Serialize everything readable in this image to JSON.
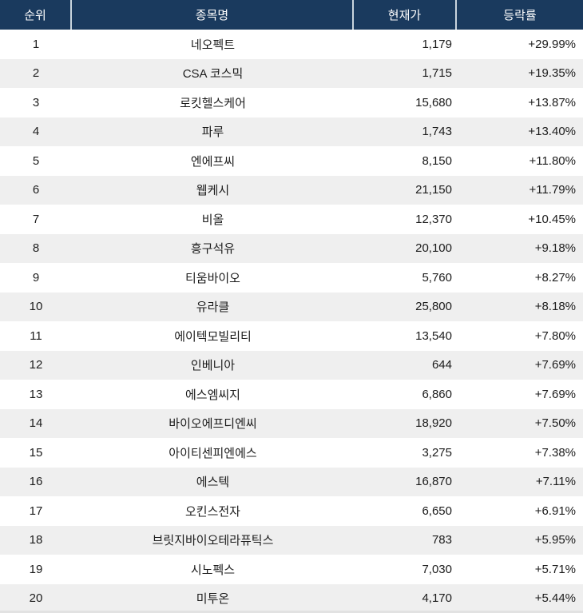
{
  "table": {
    "columns": [
      {
        "key": "rank",
        "label": "순위"
      },
      {
        "key": "name",
        "label": "종목명"
      },
      {
        "key": "price",
        "label": "현재가"
      },
      {
        "key": "change",
        "label": "등락률"
      }
    ],
    "rows": [
      {
        "rank": "1",
        "name": "네오펙트",
        "price": "1,179",
        "change": "+29.99%"
      },
      {
        "rank": "2",
        "name": "CSA 코스믹",
        "price": "1,715",
        "change": "+19.35%"
      },
      {
        "rank": "3",
        "name": "로킷헬스케어",
        "price": "15,680",
        "change": "+13.87%"
      },
      {
        "rank": "4",
        "name": "파루",
        "price": "1,743",
        "change": "+13.40%"
      },
      {
        "rank": "5",
        "name": "엔에프씨",
        "price": "8,150",
        "change": "+11.80%"
      },
      {
        "rank": "6",
        "name": "웹케시",
        "price": "21,150",
        "change": "+11.79%"
      },
      {
        "rank": "7",
        "name": "비올",
        "price": "12,370",
        "change": "+10.45%"
      },
      {
        "rank": "8",
        "name": "흥구석유",
        "price": "20,100",
        "change": "+9.18%"
      },
      {
        "rank": "9",
        "name": "티움바이오",
        "price": "5,760",
        "change": "+8.27%"
      },
      {
        "rank": "10",
        "name": "유라클",
        "price": "25,800",
        "change": "+8.18%"
      },
      {
        "rank": "11",
        "name": "에이텍모빌리티",
        "price": "13,540",
        "change": "+7.80%"
      },
      {
        "rank": "12",
        "name": "인베니아",
        "price": "644",
        "change": "+7.69%"
      },
      {
        "rank": "13",
        "name": "에스엠씨지",
        "price": "6,860",
        "change": "+7.69%"
      },
      {
        "rank": "14",
        "name": "바이오에프디엔씨",
        "price": "18,920",
        "change": "+7.50%"
      },
      {
        "rank": "15",
        "name": "아이티센피엔에스",
        "price": "3,275",
        "change": "+7.38%"
      },
      {
        "rank": "16",
        "name": "에스텍",
        "price": "16,870",
        "change": "+7.11%"
      },
      {
        "rank": "17",
        "name": "오킨스전자",
        "price": "6,650",
        "change": "+6.91%"
      },
      {
        "rank": "18",
        "name": "브릿지바이오테라퓨틱스",
        "price": "783",
        "change": "+5.95%"
      },
      {
        "rank": "19",
        "name": "시노펙스",
        "price": "7,030",
        "change": "+5.71%"
      },
      {
        "rank": "20",
        "name": "미투온",
        "price": "4,170",
        "change": "+5.44%"
      }
    ]
  },
  "colors": {
    "header_bg": "#1a3a5e",
    "header_text": "#ffffff",
    "header_divider": "#c9d4dd",
    "row_bg": "#ffffff",
    "row_alt_bg": "#efefef",
    "body_text": "#1c1c1c"
  }
}
